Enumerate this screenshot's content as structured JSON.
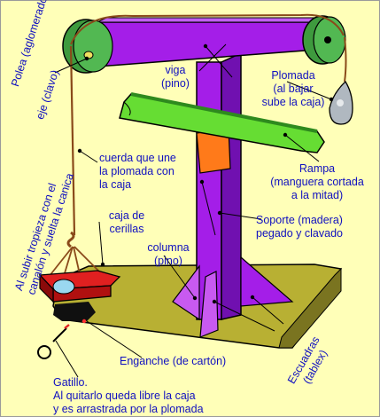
{
  "labels": {
    "polea": "Polea (aglomerado)",
    "eje": "eje (clavo)",
    "viga_1": "viga",
    "viga_2": "(pino)",
    "plomada_1": "Plomada",
    "plomada_2": "(al bajar",
    "plomada_3": "sube la caja)",
    "cuerda_1": "cuerda que une",
    "cuerda_2": "la plomada con",
    "cuerda_3": "la caja",
    "rampa_1": "Rampa",
    "rampa_2": "(manguera cortada",
    "rampa_3": "a la mitad)",
    "caja_1": "caja de",
    "caja_2": "cerillas",
    "soporte_1": "Soporte (madera)",
    "soporte_2": "pegado y clavado",
    "columna_1": "columna",
    "columna_2": "(pino)",
    "tropieza_1": "Al subir tropieza con el",
    "tropieza_2": "canalón y suelta la canica",
    "enganche": "Enganche (de cartón)",
    "escuadras_1": "Escuadras",
    "escuadras_2": "(tablex)",
    "gatillo_1": "Gatillo.",
    "gatillo_2": "Al quitarlo queda libre la caja",
    "gatillo_3": "y es arrastrada por la plomada"
  },
  "colors": {
    "background": "#ffffb8",
    "text": "#1010c0",
    "wood_purple": "#a41ee8",
    "pulley_green": "#3e9a3e",
    "ramp_green": "#66dd33",
    "support_orange": "#ff7a1a",
    "base_olive": "#b8b033",
    "box_red": "#e02020",
    "rope_brown": "#8a4a1a",
    "weight_gray": "#b0b8c0"
  }
}
